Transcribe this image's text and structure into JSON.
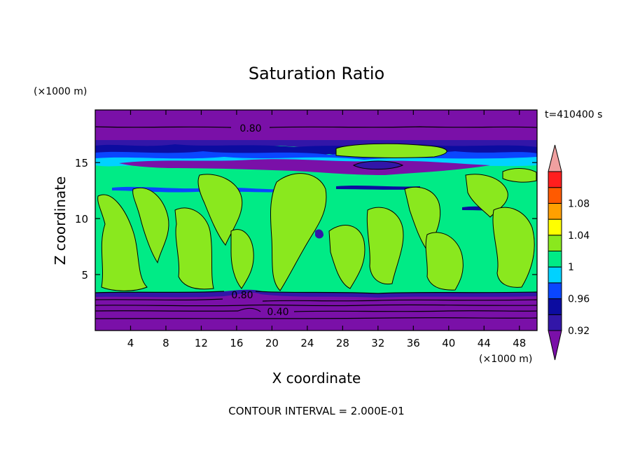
{
  "chart_data": {
    "type": "heatmap",
    "title": "Saturation Ratio",
    "xlabel": "X coordinate",
    "ylabel": "Z coordinate",
    "x_unit": "(×1000 m)",
    "y_unit": "(×1000 m)",
    "time_label": "t=410400 s",
    "footer": "CONTOUR INTERVAL = 2.000E-01",
    "xlim": [
      0,
      50
    ],
    "ylim": [
      0,
      19.7
    ],
    "x_ticks": [
      "4",
      "8",
      "12",
      "16",
      "20",
      "24",
      "28",
      "32",
      "36",
      "40",
      "44",
      "48"
    ],
    "y_ticks": [
      "5",
      "10",
      "15"
    ],
    "colorbar": {
      "levels": [
        0.92,
        0.94,
        0.96,
        0.98,
        1.0,
        1.02,
        1.04,
        1.06,
        1.08,
        1.1
      ],
      "tick_labels": [
        "0.92",
        "0.96",
        "1",
        "1.04",
        "1.08"
      ],
      "colors": [
        "#7a10a8",
        "#3216a8",
        "#0c0ca0",
        "#0a46ff",
        "#00d2ff",
        "#00eb86",
        "#8ae81e",
        "#ffff00",
        "#ffa000",
        "#ff5a00",
        "#ff1e1e",
        "#f0a0a0"
      ]
    },
    "contour_labels": [
      "0.80",
      "0.80",
      "0.40"
    ],
    "bands": [
      {
        "z": [
          17.3,
          19.7
        ],
        "value": "<0.92"
      },
      {
        "z": [
          15.2,
          17.3
        ],
        "value": "0.92-0.98"
      },
      {
        "z": [
          3.5,
          14.8
        ],
        "value": "0.98-1.02"
      },
      {
        "z": [
          0,
          3.3
        ],
        "value": "<0.92"
      }
    ]
  }
}
